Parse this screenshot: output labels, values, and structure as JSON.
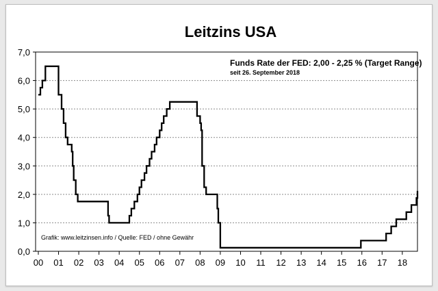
{
  "chart_data": {
    "type": "line",
    "title": "Leitzins USA",
    "annotation_line1": "Funds Rate der FED: 2,00 - 2,25 % (Target Range)",
    "annotation_line2": "seit 26. September 2018",
    "source": "Grafik: www.leitzinsen.info / Quelle: FED / ohne Gewähr",
    "xlabel": "",
    "ylabel": "",
    "xlim": [
      0,
      18.75
    ],
    "ylim": [
      0,
      7
    ],
    "grid": true,
    "x_ticks": [
      {
        "value": 0,
        "label": "00"
      },
      {
        "value": 1,
        "label": "01"
      },
      {
        "value": 2,
        "label": "02"
      },
      {
        "value": 3,
        "label": "03"
      },
      {
        "value": 4,
        "label": "04"
      },
      {
        "value": 5,
        "label": "05"
      },
      {
        "value": 6,
        "label": "06"
      },
      {
        "value": 7,
        "label": "07"
      },
      {
        "value": 8,
        "label": "08"
      },
      {
        "value": 9,
        "label": "09"
      },
      {
        "value": 10,
        "label": "10"
      },
      {
        "value": 11,
        "label": "11"
      },
      {
        "value": 12,
        "label": "12"
      },
      {
        "value": 13,
        "label": "13"
      },
      {
        "value": 14,
        "label": "14"
      },
      {
        "value": 15,
        "label": "15"
      },
      {
        "value": 16,
        "label": "16"
      },
      {
        "value": 17,
        "label": "17"
      },
      {
        "value": 18,
        "label": "18"
      }
    ],
    "y_ticks": [
      {
        "value": 0,
        "label": "0,0"
      },
      {
        "value": 1,
        "label": "1,0"
      },
      {
        "value": 2,
        "label": "2,0"
      },
      {
        "value": 3,
        "label": "3,0"
      },
      {
        "value": 4,
        "label": "4,0"
      },
      {
        "value": 5,
        "label": "5,0"
      },
      {
        "value": 6,
        "label": "6,0"
      },
      {
        "value": 7,
        "label": "7,0"
      }
    ],
    "line_color": "#000000",
    "grid_color": "#8a8a8a",
    "steps": [
      [
        0.0,
        5.5
      ],
      [
        0.1,
        5.75
      ],
      [
        0.2,
        6.0
      ],
      [
        0.35,
        6.5
      ],
      [
        0.9,
        6.5
      ],
      [
        1.0,
        5.5
      ],
      [
        1.15,
        5.0
      ],
      [
        1.25,
        4.5
      ],
      [
        1.35,
        4.0
      ],
      [
        1.45,
        3.75
      ],
      [
        1.65,
        3.5
      ],
      [
        1.7,
        3.0
      ],
      [
        1.75,
        2.5
      ],
      [
        1.85,
        2.0
      ],
      [
        1.95,
        1.75
      ],
      [
        2.85,
        1.75
      ],
      [
        3.45,
        1.25
      ],
      [
        3.5,
        1.0
      ],
      [
        4.45,
        1.0
      ],
      [
        4.5,
        1.25
      ],
      [
        4.6,
        1.5
      ],
      [
        4.75,
        1.75
      ],
      [
        4.9,
        2.0
      ],
      [
        5.0,
        2.25
      ],
      [
        5.1,
        2.5
      ],
      [
        5.25,
        2.75
      ],
      [
        5.35,
        3.0
      ],
      [
        5.5,
        3.25
      ],
      [
        5.6,
        3.5
      ],
      [
        5.75,
        3.75
      ],
      [
        5.85,
        4.0
      ],
      [
        6.0,
        4.25
      ],
      [
        6.1,
        4.5
      ],
      [
        6.2,
        4.75
      ],
      [
        6.35,
        5.0
      ],
      [
        6.5,
        5.25
      ],
      [
        7.75,
        5.25
      ],
      [
        7.85,
        4.75
      ],
      [
        8.0,
        4.5
      ],
      [
        8.05,
        4.25
      ],
      [
        8.1,
        3.0
      ],
      [
        8.2,
        2.25
      ],
      [
        8.3,
        2.0
      ],
      [
        8.8,
        2.0
      ],
      [
        8.85,
        1.5
      ],
      [
        8.9,
        1.0
      ],
      [
        9.0,
        0.125
      ],
      [
        15.95,
        0.125
      ],
      [
        15.95,
        0.375
      ],
      [
        16.95,
        0.375
      ],
      [
        17.2,
        0.625
      ],
      [
        17.45,
        0.875
      ],
      [
        17.7,
        1.125
      ],
      [
        18.2,
        1.375
      ],
      [
        18.45,
        1.625
      ],
      [
        18.7,
        1.875
      ],
      [
        18.75,
        2.125
      ]
    ]
  }
}
